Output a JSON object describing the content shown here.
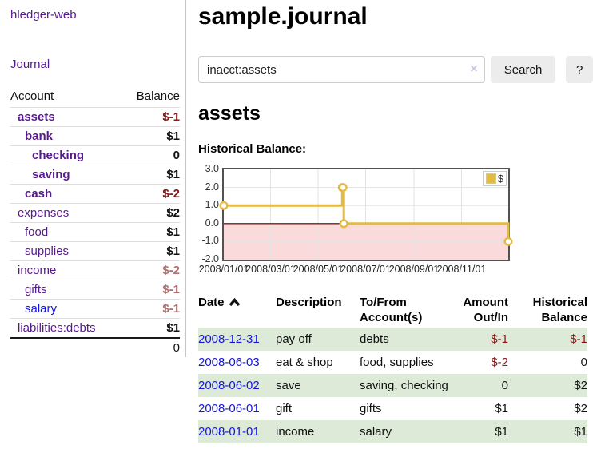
{
  "colors": {
    "link_purple": "#551a8b",
    "link_blue": "#1515e0",
    "negative_strong": "#8b1717",
    "negative_soft": "#b56e6e",
    "row_green": "#dcead7",
    "chart_line_gold": "#e3ba45",
    "chart_negative_region": "#fadada",
    "chart_zero_line": "#8b1515"
  },
  "sidebar": {
    "app_title": "hledger-web",
    "journal_link": "Journal",
    "accounts": {
      "col_account": "Account",
      "col_balance": "Balance",
      "rows": [
        {
          "name": "assets",
          "indent": 1,
          "bold": true,
          "balance": "$-1",
          "balance_style": "neg-strong"
        },
        {
          "name": "bank",
          "indent": 2,
          "bold": true,
          "balance": "$1",
          "balance_style": ""
        },
        {
          "name": "checking",
          "indent": 3,
          "bold": true,
          "balance": "0",
          "balance_style": ""
        },
        {
          "name": "saving",
          "indent": 3,
          "bold": true,
          "balance": "$1",
          "balance_style": ""
        },
        {
          "name": "cash",
          "indent": 2,
          "bold": true,
          "balance": "$-2",
          "balance_style": "neg-strong"
        },
        {
          "name": "expenses",
          "indent": 1,
          "bold": false,
          "balance": "$2",
          "balance_style": ""
        },
        {
          "name": "food",
          "indent": 2,
          "bold": false,
          "balance": "$1",
          "balance_style": ""
        },
        {
          "name": "supplies",
          "indent": 2,
          "bold": false,
          "balance": "$1",
          "balance_style": ""
        },
        {
          "name": "income",
          "indent": 1,
          "bold": false,
          "balance": "$-2",
          "balance_style": "neg-soft"
        },
        {
          "name": "gifts",
          "indent": 2,
          "bold": false,
          "balance": "$-1",
          "balance_style": "neg-soft"
        },
        {
          "name": "salary",
          "indent": 2,
          "bold": false,
          "link_color": "blue",
          "balance": "$-1",
          "balance_style": "neg-soft"
        },
        {
          "name": "liabilities:debts",
          "indent": 1,
          "bold": false,
          "balance": "$1",
          "balance_style": ""
        }
      ],
      "total": "0"
    }
  },
  "main": {
    "title": "sample.journal",
    "search_value": "inacct:assets",
    "clear_icon": "×",
    "search_button": "Search",
    "help_button": "?",
    "account_heading": "assets",
    "chart_title": "Historical Balance:"
  },
  "chart_data": {
    "type": "line",
    "step": true,
    "title": "Historical Balance:",
    "series": [
      {
        "name": "$",
        "color": "#e3ba45",
        "points": [
          [
            "2008-01-01",
            1
          ],
          [
            "2008-06-01",
            2
          ],
          [
            "2008-06-02",
            2
          ],
          [
            "2008-06-03",
            0
          ],
          [
            "2008-12-31",
            -1
          ]
        ]
      }
    ],
    "x_range": [
      "2008-01-01",
      "2008-12-31"
    ],
    "ylim": [
      -2,
      3
    ],
    "yticks": [
      "3.0",
      "2.0",
      "1.0",
      "0.0",
      "-1.0",
      "-2.0"
    ],
    "xticks": [
      "2008/01/01",
      "2008/03/01",
      "2008/05/01",
      "2008/07/01",
      "2008/09/01",
      "2008/11/01"
    ],
    "grid": true,
    "legend_position": "top-right",
    "negative_region_shaded": true
  },
  "register": {
    "headers": [
      {
        "label": "Date",
        "sort_icon": true,
        "align": "left"
      },
      {
        "label": "Description",
        "align": "left"
      },
      {
        "label": "To/From Account(s)",
        "align": "left"
      },
      {
        "label": "Amount Out/In",
        "align": "right"
      },
      {
        "label": "Historical Balance",
        "align": "right"
      }
    ],
    "rows": [
      {
        "date": "2008-12-31",
        "description": "pay off",
        "accounts": "debts",
        "amount": "$-1",
        "amount_negative": true,
        "balance": "$-1",
        "balance_negative": true
      },
      {
        "date": "2008-06-03",
        "description": "eat & shop",
        "accounts": "food, supplies",
        "amount": "$-2",
        "amount_negative": true,
        "balance": "0",
        "balance_negative": false
      },
      {
        "date": "2008-06-02",
        "description": "save",
        "accounts": "saving, checking",
        "amount": "0",
        "amount_negative": false,
        "balance": "$2",
        "balance_negative": false
      },
      {
        "date": "2008-06-01",
        "description": "gift",
        "accounts": "gifts",
        "amount": "$1",
        "amount_negative": false,
        "balance": "$2",
        "balance_negative": false
      },
      {
        "date": "2008-01-01",
        "description": "income",
        "accounts": "salary",
        "amount": "$1",
        "amount_negative": false,
        "balance": "$1",
        "balance_negative": false
      }
    ]
  }
}
